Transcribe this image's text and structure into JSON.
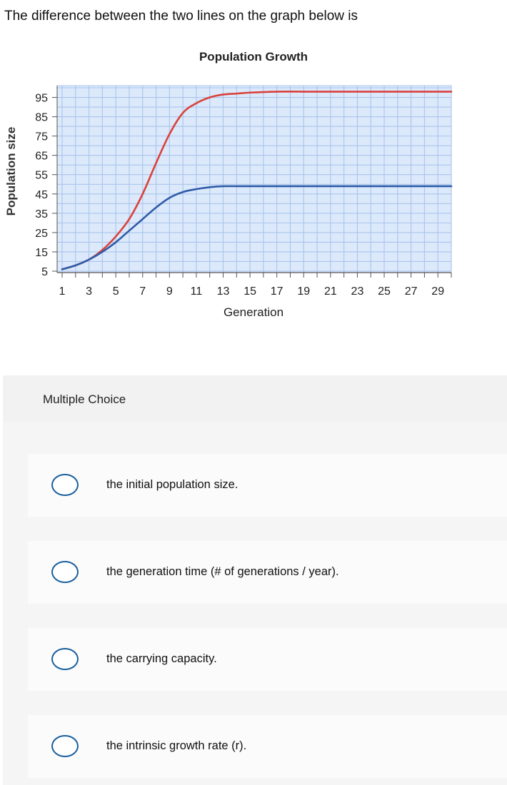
{
  "question": "The difference between the two lines on the graph below is",
  "chart_data": {
    "type": "line",
    "title": "Population Growth",
    "xlabel": "Generation",
    "ylabel": "Population size",
    "xlim": [
      1,
      30
    ],
    "ylim": [
      5,
      100
    ],
    "xticks": [
      1,
      3,
      5,
      7,
      9,
      11,
      13,
      15,
      17,
      19,
      21,
      23,
      25,
      27,
      29
    ],
    "yticks": [
      5,
      15,
      25,
      35,
      45,
      55,
      65,
      75,
      85,
      95
    ],
    "grid": true,
    "series": [
      {
        "color": "#d9413a",
        "x": [
          1,
          2,
          3,
          4,
          5,
          6,
          7,
          8,
          9,
          10,
          11,
          12,
          13,
          14,
          15,
          17,
          19,
          21,
          25,
          30
        ],
        "y": [
          6,
          8,
          11,
          16,
          23,
          32,
          45,
          61,
          76,
          87,
          92,
          95,
          96.5,
          97,
          97.5,
          98,
          98,
          98,
          98,
          98
        ]
      },
      {
        "color": "#2e5ba8",
        "x": [
          1,
          2,
          3,
          4,
          5,
          6,
          7,
          8,
          9,
          10,
          11,
          12,
          13,
          15,
          17,
          20,
          25,
          30
        ],
        "y": [
          6,
          8,
          11,
          15,
          20,
          26,
          32,
          38,
          43,
          46,
          47.5,
          48.5,
          49,
          49,
          49,
          49,
          49,
          49
        ]
      }
    ],
    "colors": {
      "plot_background": "#dce9fb",
      "grid": "#a9c4ec"
    }
  },
  "multiple_choice": {
    "header": "Multiple Choice",
    "options": [
      {
        "label": "the initial population size."
      },
      {
        "label": "the generation time (# of generations / year)."
      },
      {
        "label": "the carrying capacity."
      },
      {
        "label": "the intrinsic growth rate (r)."
      }
    ]
  },
  "colors": {
    "radio_border": "#1a5f9e"
  }
}
